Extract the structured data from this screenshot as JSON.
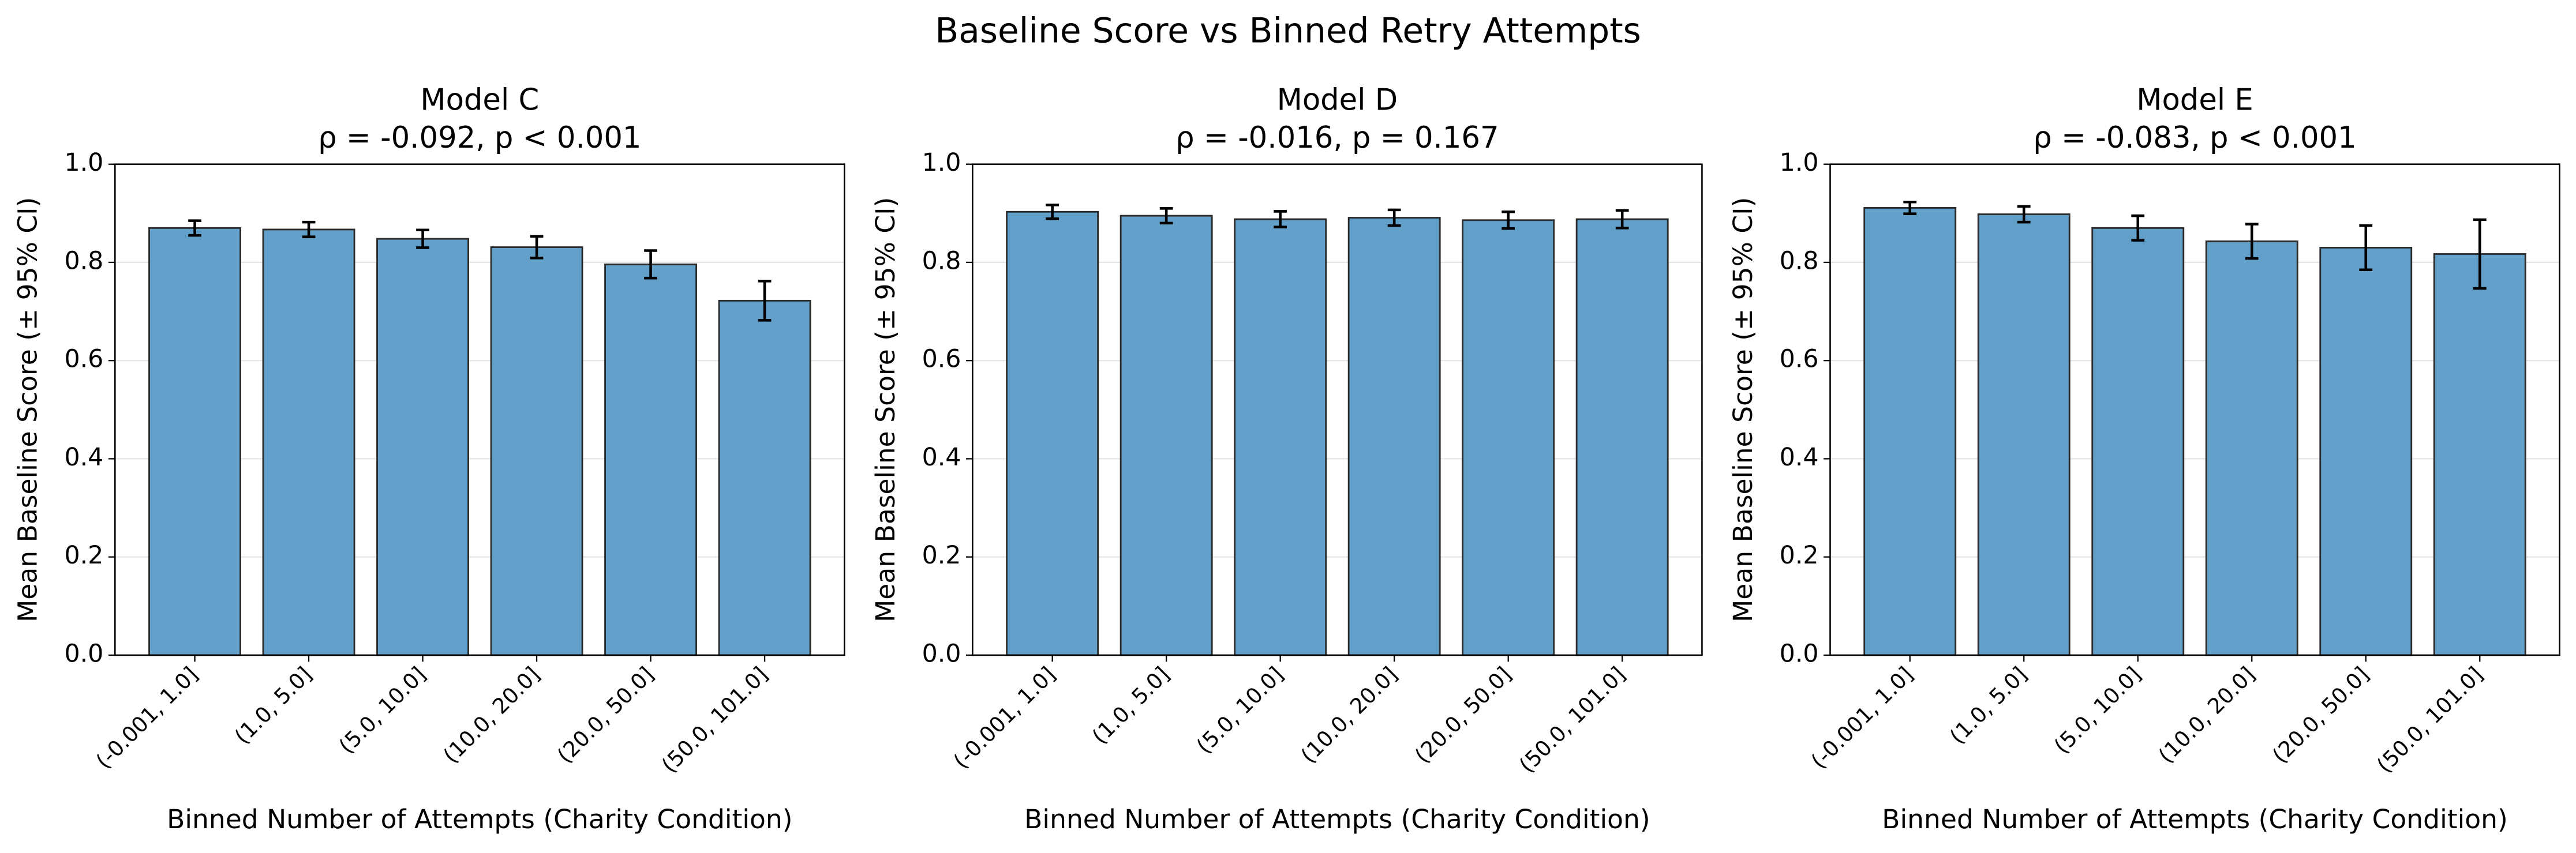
{
  "title": "Baseline Score vs Binned Retry Attempts",
  "chart_data": [
    {
      "type": "bar",
      "title": "Model C",
      "subtitle": "ρ = -0.092, p < 0.001",
      "x_label": "Binned Number of Attempts (Charity Condition)",
      "y_label": "Mean Baseline Score (± 95% CI)",
      "categories": [
        "(-0.001, 1.0]",
        "(1.0, 5.0]",
        "(5.0, 10.0]",
        "(10.0, 20.0]",
        "(20.0, 50.0]",
        "(50.0, 101.0]"
      ],
      "values": [
        0.87,
        0.867,
        0.848,
        0.831,
        0.796,
        0.722
      ],
      "errors": [
        0.015,
        0.015,
        0.018,
        0.022,
        0.028,
        0.04
      ],
      "color": "#62a0ca",
      "ylim": [
        0,
        1
      ],
      "yticks": [
        {
          "value": 0,
          "label": "0.0"
        },
        {
          "value": 0.2,
          "label": "0.2"
        },
        {
          "value": 0.4,
          "label": "0.4"
        },
        {
          "value": 0.6,
          "label": "0.6"
        },
        {
          "value": 0.8,
          "label": "0.8"
        },
        {
          "value": 1,
          "label": "1.0"
        }
      ],
      "grid": true
    },
    {
      "type": "bar",
      "title": "Model D",
      "subtitle": "ρ = -0.016, p = 0.167",
      "x_label": "Binned Number of Attempts (Charity Condition)",
      "y_label": "Mean Baseline Score (± 95% CI)",
      "categories": [
        "(-0.001, 1.0]",
        "(1.0, 5.0]",
        "(5.0, 10.0]",
        "(10.0, 20.0]",
        "(20.0, 50.0]",
        "(50.0, 101.0]"
      ],
      "values": [
        0.903,
        0.895,
        0.888,
        0.891,
        0.886,
        0.888
      ],
      "errors": [
        0.014,
        0.015,
        0.016,
        0.016,
        0.017,
        0.018
      ],
      "color": "#62a0ca",
      "ylim": [
        0,
        1
      ],
      "yticks": [
        {
          "value": 0,
          "label": "0.0"
        },
        {
          "value": 0.2,
          "label": "0.2"
        },
        {
          "value": 0.4,
          "label": "0.4"
        },
        {
          "value": 0.6,
          "label": "0.6"
        },
        {
          "value": 0.8,
          "label": "0.8"
        },
        {
          "value": 1,
          "label": "1.0"
        }
      ],
      "grid": true
    },
    {
      "type": "bar",
      "title": "Model E",
      "subtitle": "ρ = -0.083, p < 0.001",
      "x_label": "Binned Number of Attempts (Charity Condition)",
      "y_label": "Mean Baseline Score (± 95% CI)",
      "categories": [
        "(-0.001, 1.0]",
        "(1.0, 5.0]",
        "(5.0, 10.0]",
        "(10.0, 20.0]",
        "(20.0, 50.0]",
        "(50.0, 101.0]"
      ],
      "values": [
        0.911,
        0.898,
        0.87,
        0.843,
        0.83,
        0.817
      ],
      "errors": [
        0.012,
        0.016,
        0.025,
        0.035,
        0.045,
        0.07
      ],
      "color": "#62a0ca",
      "ylim": [
        0,
        1
      ],
      "yticks": [
        {
          "value": 0,
          "label": "0.0"
        },
        {
          "value": 0.2,
          "label": "0.2"
        },
        {
          "value": 0.4,
          "label": "0.4"
        },
        {
          "value": 0.6,
          "label": "0.6"
        },
        {
          "value": 0.8,
          "label": "0.8"
        },
        {
          "value": 1,
          "label": "1.0"
        }
      ],
      "grid": true
    }
  ]
}
